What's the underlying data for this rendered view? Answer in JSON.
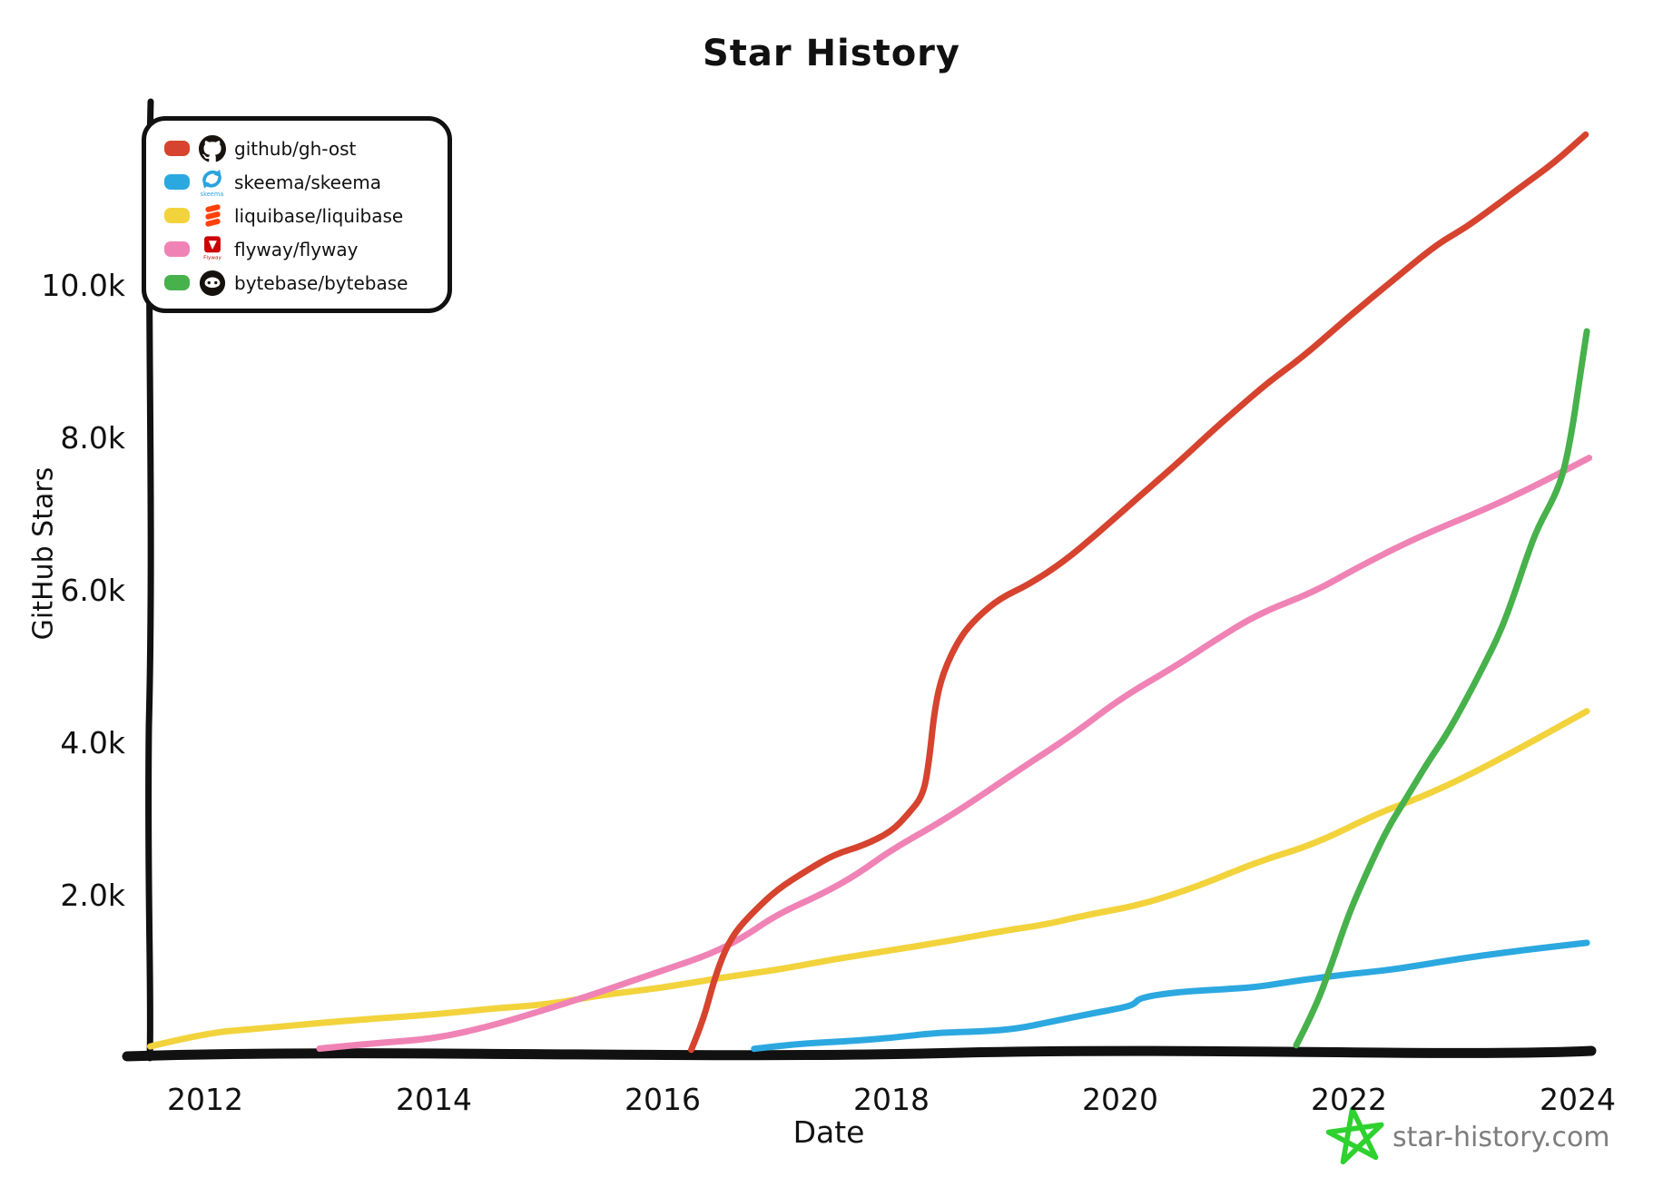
{
  "title": "Star History",
  "axes": {
    "x_label": "Date",
    "y_label": "GitHub Stars"
  },
  "legend": {
    "items": [
      {
        "label": "github/gh-ost",
        "color": "#d6432e",
        "icon": "github-octocat-icon"
      },
      {
        "label": "skeema/skeema",
        "color": "#2ca8e0",
        "icon": "skeema-logo-icon"
      },
      {
        "label": "liquibase/liquibase",
        "color": "#f2d33c",
        "icon": "liquibase-logo-icon"
      },
      {
        "label": "flyway/flyway",
        "color": "#f083b5",
        "icon": "flyway-logo-icon"
      },
      {
        "label": "bytebase/bytebase",
        "color": "#47b14b",
        "icon": "bytebase-logo-icon"
      }
    ]
  },
  "footer": {
    "brand": "star-history.com",
    "brand_color": "#7d7d7d",
    "star_color": "#2fd12f"
  },
  "chart_data": {
    "type": "line",
    "title": "Star History",
    "xlabel": "Date",
    "ylabel": "GitHub Stars",
    "grid": false,
    "legend_position": "top-left",
    "x_range": [
      2011.5,
      2024.2
    ],
    "y_range": [
      0,
      12400
    ],
    "x_ticks": [
      {
        "label": "2012",
        "year": 2012
      },
      {
        "label": "2014",
        "year": 2014
      },
      {
        "label": "2016",
        "year": 2016
      },
      {
        "label": "2018",
        "year": 2018
      },
      {
        "label": "2020",
        "year": 2020
      },
      {
        "label": "2022",
        "year": 2022
      },
      {
        "label": "2024",
        "year": 2024
      }
    ],
    "y_ticks": [
      {
        "label": "2.0k",
        "stars": 2000
      },
      {
        "label": "4.0k",
        "stars": 4000
      },
      {
        "label": "6.0k",
        "stars": 6000
      },
      {
        "label": "8.0k",
        "stars": 8000
      },
      {
        "label": "10.0k",
        "stars": 10000
      }
    ],
    "series": [
      {
        "name": "liquibase/liquibase",
        "color": "#f2d33c",
        "points": [
          [
            2011.52,
            50
          ],
          [
            2012.0,
            200
          ],
          [
            2012.5,
            280
          ],
          [
            2013.0,
            340
          ],
          [
            2013.5,
            400
          ],
          [
            2014.0,
            460
          ],
          [
            2014.5,
            520
          ],
          [
            2015.0,
            600
          ],
          [
            2015.5,
            700
          ],
          [
            2016.0,
            820
          ],
          [
            2016.5,
            920
          ],
          [
            2017.0,
            1050
          ],
          [
            2017.5,
            1170
          ],
          [
            2018.0,
            1300
          ],
          [
            2018.5,
            1420
          ],
          [
            2019.0,
            1550
          ],
          [
            2019.35,
            1650
          ],
          [
            2019.7,
            1750
          ],
          [
            2020.2,
            1900
          ],
          [
            2020.7,
            2150
          ],
          [
            2021.2,
            2450
          ],
          [
            2021.7,
            2700
          ],
          [
            2022.25,
            3080
          ],
          [
            2022.6,
            3300
          ],
          [
            2023.0,
            3550
          ],
          [
            2023.5,
            3950
          ],
          [
            2024.08,
            4430
          ]
        ]
      },
      {
        "name": "skeema/skeema",
        "color": "#2ca8e0",
        "points": [
          [
            2016.8,
            20
          ],
          [
            2017.2,
            60
          ],
          [
            2017.6,
            100
          ],
          [
            2018.0,
            160
          ],
          [
            2018.4,
            200
          ],
          [
            2018.8,
            240
          ],
          [
            2019.1,
            280
          ],
          [
            2019.4,
            350
          ],
          [
            2019.7,
            440
          ],
          [
            2020.0,
            550
          ],
          [
            2020.12,
            600
          ],
          [
            2020.17,
            690
          ],
          [
            2020.5,
            740
          ],
          [
            2020.9,
            780
          ],
          [
            2021.2,
            830
          ],
          [
            2021.6,
            900
          ],
          [
            2022.0,
            980
          ],
          [
            2022.4,
            1060
          ],
          [
            2022.8,
            1130
          ],
          [
            2023.2,
            1240
          ],
          [
            2023.6,
            1320
          ],
          [
            2024.08,
            1380
          ]
        ]
      },
      {
        "name": "flyway/flyway",
        "color": "#f083b5",
        "points": [
          [
            2013.0,
            20
          ],
          [
            2013.5,
            70
          ],
          [
            2014.0,
            140
          ],
          [
            2014.5,
            300
          ],
          [
            2015.1,
            580
          ],
          [
            2015.5,
            780
          ],
          [
            2016.0,
            1020
          ],
          [
            2016.4,
            1250
          ],
          [
            2016.7,
            1460
          ],
          [
            2017.0,
            1750
          ],
          [
            2017.4,
            2050
          ],
          [
            2017.7,
            2300
          ],
          [
            2018.0,
            2600
          ],
          [
            2018.5,
            3050
          ],
          [
            2019.15,
            3680
          ],
          [
            2019.6,
            4150
          ],
          [
            2020.0,
            4600
          ],
          [
            2020.5,
            5030
          ],
          [
            2020.8,
            5350
          ],
          [
            2021.2,
            5700
          ],
          [
            2021.7,
            6000
          ],
          [
            2022.1,
            6350
          ],
          [
            2022.6,
            6700
          ],
          [
            2023.2,
            7100
          ],
          [
            2023.6,
            7350
          ],
          [
            2024.1,
            7770
          ]
        ]
      },
      {
        "name": "github/gh-ost",
        "color": "#d6432e",
        "points": [
          [
            2016.25,
            0
          ],
          [
            2016.35,
            350
          ],
          [
            2016.45,
            900
          ],
          [
            2016.55,
            1300
          ],
          [
            2016.65,
            1550
          ],
          [
            2016.8,
            1800
          ],
          [
            2017.0,
            2100
          ],
          [
            2017.25,
            2350
          ],
          [
            2017.5,
            2550
          ],
          [
            2017.75,
            2650
          ],
          [
            2018.0,
            2850
          ],
          [
            2018.15,
            3100
          ],
          [
            2018.28,
            3350
          ],
          [
            2018.33,
            3800
          ],
          [
            2018.38,
            4500
          ],
          [
            2018.45,
            4950
          ],
          [
            2018.6,
            5400
          ],
          [
            2018.75,
            5650
          ],
          [
            2018.95,
            5900
          ],
          [
            2019.2,
            6100
          ],
          [
            2019.5,
            6400
          ],
          [
            2019.8,
            6750
          ],
          [
            2020.1,
            7150
          ],
          [
            2020.5,
            7700
          ],
          [
            2020.8,
            8100
          ],
          [
            2021.0,
            8350
          ],
          [
            2021.3,
            8750
          ],
          [
            2021.6,
            9100
          ],
          [
            2022.0,
            9600
          ],
          [
            2022.4,
            10100
          ],
          [
            2022.75,
            10550
          ],
          [
            2022.95,
            10720
          ],
          [
            2023.1,
            10850
          ],
          [
            2023.5,
            11300
          ],
          [
            2023.8,
            11650
          ],
          [
            2024.07,
            12000
          ]
        ]
      },
      {
        "name": "bytebase/bytebase",
        "color": "#47b14b",
        "points": [
          [
            2021.54,
            50
          ],
          [
            2021.7,
            500
          ],
          [
            2021.85,
            1100
          ],
          [
            2022.0,
            1770
          ],
          [
            2022.15,
            2300
          ],
          [
            2022.33,
            2890
          ],
          [
            2022.5,
            3300
          ],
          [
            2022.69,
            3760
          ],
          [
            2022.85,
            4100
          ],
          [
            2023.0,
            4500
          ],
          [
            2023.17,
            5000
          ],
          [
            2023.33,
            5500
          ],
          [
            2023.45,
            6000
          ],
          [
            2023.55,
            6450
          ],
          [
            2023.65,
            6850
          ],
          [
            2023.8,
            7250
          ],
          [
            2023.88,
            7570
          ],
          [
            2023.95,
            8100
          ],
          [
            2024.0,
            8600
          ],
          [
            2024.08,
            9400
          ]
        ]
      }
    ]
  }
}
